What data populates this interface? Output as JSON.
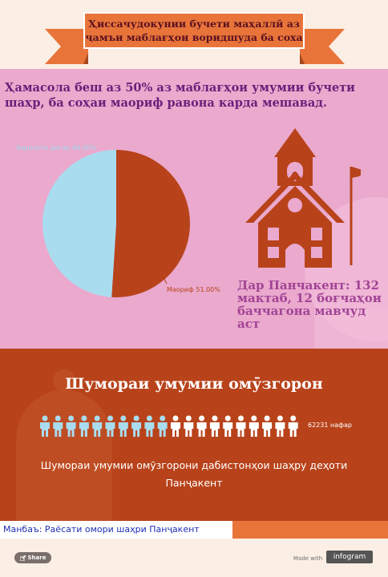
{
  "header": {
    "title": "Ҳиссачудокунии бучети маҳаллӣ аз ҷамъи маблағҳои воридшуда ба соха"
  },
  "main": {
    "lead_text": "Ҳамасола беш аз 50% аз маблағҳои умумии бучети шаҳр, ба соҳаи маориф равона карда мешавад.",
    "pie": {
      "label_left": "Харочоти дигар 49.00%",
      "label_right": "Маориф 51.00%"
    },
    "panjakent_text": "Дар Панчакент: 132 мактаб, 12 боғчаҳои баччагона мавчуд аст"
  },
  "chart_data": {
    "type": "pie",
    "categories": [
      "Маориф",
      "Харочоти дигар"
    ],
    "values": [
      51.0,
      49.0
    ],
    "colors": [
      "#b8431b",
      "#a9dcef"
    ]
  },
  "teachers": {
    "title": "Шумораи умумии омӯзгорон",
    "count_label": "62231 нафар",
    "icons_total": 20,
    "icons_highlighted": 10,
    "subtitle": "Шумораи умумии омӯзгорони дабистонҳои шаҳру деҳоти Панҷакент"
  },
  "source": {
    "text": "Манбаъ: Раёсати омори шаҳри Панҷакент"
  },
  "footer": {
    "share_label": "Share",
    "made_with": "Made with",
    "brand": "infogram"
  },
  "colors": {
    "pink_bg": "#eaa9cd",
    "orange_bg": "#b8431b",
    "accent": "#e8743a",
    "light_blue": "#a9dcef"
  }
}
